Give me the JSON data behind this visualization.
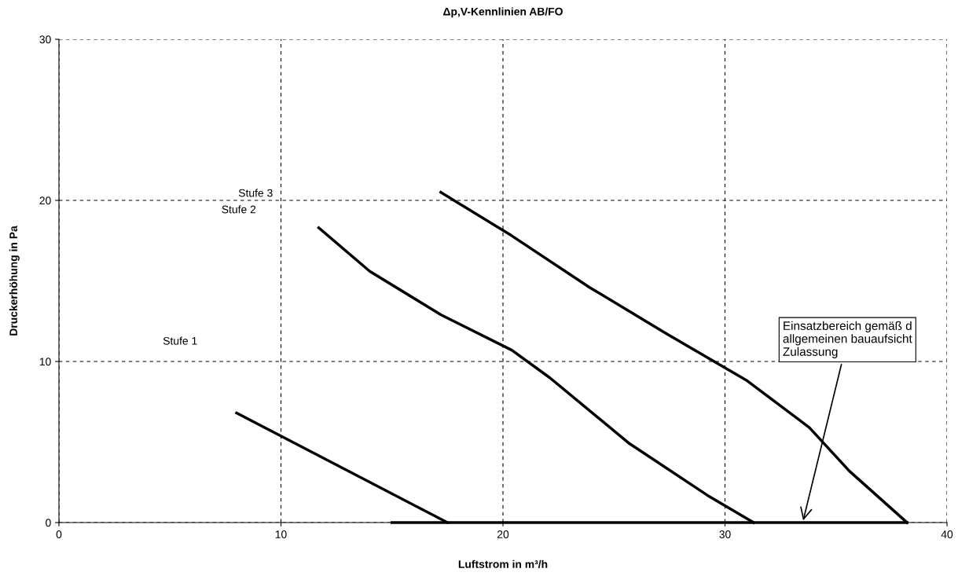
{
  "chart_data": {
    "type": "line",
    "title": "Δp,V-Kennlinien AB/FO",
    "xlabel": "Luftstrom in m³/h",
    "ylabel": "Druckerhöhung in Pa",
    "xlim": [
      0,
      40
    ],
    "xticks": [
      0,
      10,
      20,
      30,
      40
    ],
    "ylim": [
      0,
      30
    ],
    "yticks": [
      0,
      10,
      20,
      30
    ],
    "grid": true,
    "line_style": "solid",
    "marker": "none",
    "series": [
      {
        "color": "#000000",
        "x": [
          8.0,
          17.5
        ],
        "values": [
          6.8,
          0
        ]
      },
      {
        "color": "#000000",
        "x": [
          11.7,
          14,
          17.2,
          20.4,
          22.1,
          25.7,
          29.2,
          31.3
        ],
        "values": [
          18.3,
          15.6,
          12.9,
          10.7,
          9.0,
          4.9,
          1.7,
          0
        ]
      },
      {
        "color": "#000000",
        "x": [
          17.2,
          20.4,
          23.9,
          27.4,
          31,
          33.8,
          35.6,
          38.2
        ],
        "values": [
          20.5,
          17.8,
          14.6,
          11.7,
          8.8,
          5.9,
          3.2,
          0
        ]
      },
      {
        "color": "#000000",
        "x": [
          15,
          38.2
        ],
        "values": [
          0,
          0
        ]
      }
    ],
    "annotations": [
      "Stufe 1",
      "Stufe 2",
      "Stufe 3",
      {
        "text": "Einsatzbereich gemäß d\nallgemeinen bauaufsicht\nZulassung",
        "x": 33.5,
        "y": 0
      }
    ]
  }
}
